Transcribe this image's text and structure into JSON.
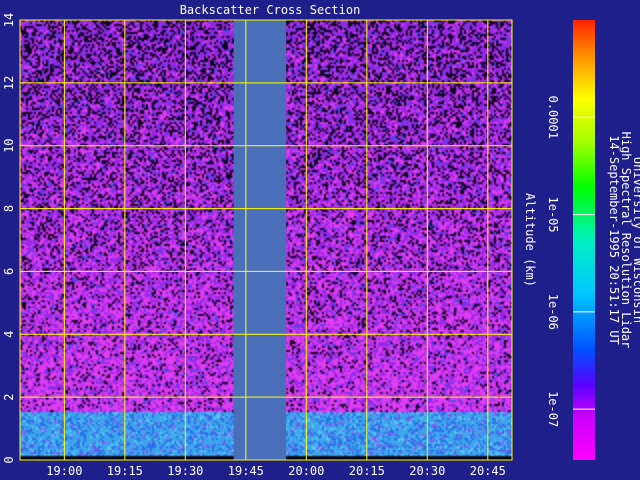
{
  "chart_data": {
    "type": "heatmap",
    "title": "Backscatter Cross Section",
    "xlabel": "",
    "ylabel": "Altitude (km)",
    "x_ticks": [
      "19:00",
      "19:15",
      "19:30",
      "19:45",
      "20:00",
      "20:15",
      "20:30",
      "20:45"
    ],
    "x_range_minutes_of_day": [
      1129,
      1251
    ],
    "x_tick_minutes": [
      1140,
      1155,
      1170,
      1185,
      1200,
      1215,
      1230,
      1245
    ],
    "y_ticks": [
      0,
      2,
      4,
      6,
      8,
      10,
      12,
      14
    ],
    "ylim": [
      0,
      14
    ],
    "grid": true,
    "data_gap": {
      "start": "19:42",
      "end": "19:55"
    },
    "boundary_layer_top_km": 1.5,
    "colorbar": {
      "scale": "log",
      "range": [
        3e-08,
        0.001
      ],
      "tick_labels": [
        "1e-07",
        "1e-06",
        "1e-05",
        "0.0001"
      ],
      "tick_values": [
        1e-07,
        1e-06,
        1e-05,
        0.0001
      ]
    },
    "colors": {
      "background": "#1f1f8c",
      "grid": "#ffff00",
      "gap": "#4a6fb8",
      "aerosol_layer": "#3fa0e6",
      "clear_air": "#e13cf0"
    }
  },
  "annotation": {
    "line1": "University of Wisconsin",
    "line2": "High Spectral Resolution Lidar",
    "line3": "14-September-1995 20:51:17 UT"
  }
}
